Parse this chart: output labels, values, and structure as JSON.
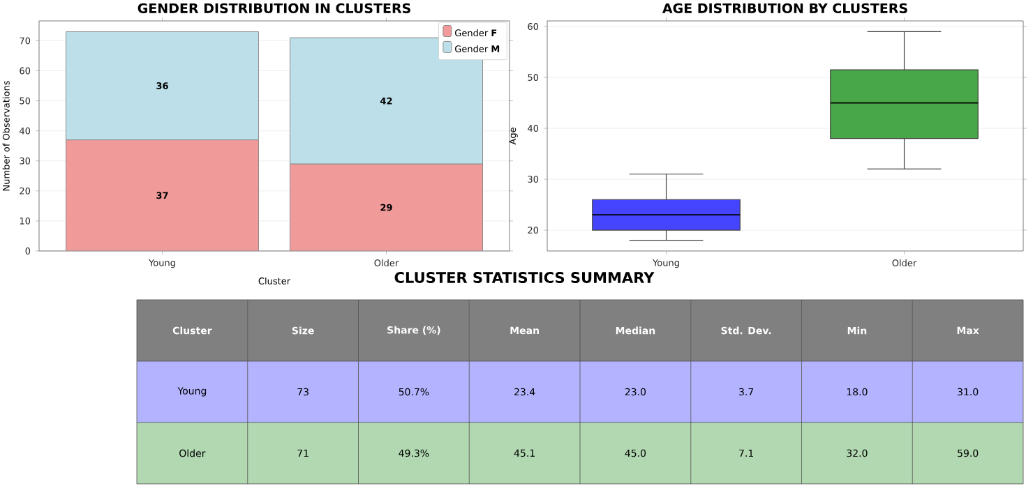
{
  "chart_data": [
    {
      "type": "bar",
      "title": "GENDER DISTRIBUTION IN CLUSTERS",
      "xlabel": "Cluster",
      "ylabel": "Number of Observations",
      "categories": [
        "Young",
        "Older"
      ],
      "stacked": true,
      "series": [
        {
          "name": "Gender **F**",
          "color": "#f19a9a",
          "values": [
            37,
            29
          ]
        },
        {
          "name": "Gender **M**",
          "color": "#bcdfe9",
          "values": [
            36,
            42
          ]
        }
      ],
      "ylim": [
        0,
        76.6
      ],
      "yticks": [
        0,
        10,
        20,
        30,
        40,
        50,
        60,
        70
      ],
      "grid": "y",
      "legend": "top right",
      "data_labels": true
    },
    {
      "type": "box",
      "title": "AGE DISTRIBUTION BY CLUSTERS",
      "ylabel": "Age",
      "categories": [
        "Young",
        "Older"
      ],
      "colors": [
        "#4545ff",
        "#48a848"
      ],
      "boxes": [
        {
          "low": 18,
          "q1": 20,
          "median": 23,
          "q3": 26,
          "high": 31
        },
        {
          "low": 32,
          "q1": 38,
          "median": 45,
          "q3": 51.5,
          "high": 59
        }
      ],
      "ylim": [
        15.9,
        61.1
      ],
      "yticks": [
        20,
        30,
        40,
        50,
        60
      ],
      "grid": "y"
    },
    {
      "type": "other",
      "title": "CLUSTER STATISTICS SUMMARY",
      "categories": [
        "Cluster",
        "Size",
        "Share (%)",
        "Mean",
        "Median",
        "Std. Dev.",
        "Min",
        "Max"
      ],
      "colors": [
        "#808080",
        "#808080",
        "#808080",
        "#808080",
        "#808080",
        "#808080",
        "#808080",
        "#808080",
        "#b3b3ff",
        "#b3b3ff",
        "#b3b3ff",
        "#b3b3ff",
        "#b3b3ff",
        "#b3b3ff",
        "#b3b3ff",
        "#b3b3ff",
        "#b1d8b1",
        "#b1d8b1",
        "#b1d8b1",
        "#b1d8b1",
        "#b1d8b1",
        "#b1d8b1",
        "#b1d8b1",
        "#b1d8b1"
      ],
      "annotations": [
        "Young",
        "73",
        "50.7%",
        "23.4",
        "23.0",
        "3.7",
        "18.0",
        "31.0",
        "Older",
        "71",
        "49.3%",
        "45.1",
        "45.0",
        "7.1",
        "32.0",
        "59.0"
      ]
    }
  ]
}
